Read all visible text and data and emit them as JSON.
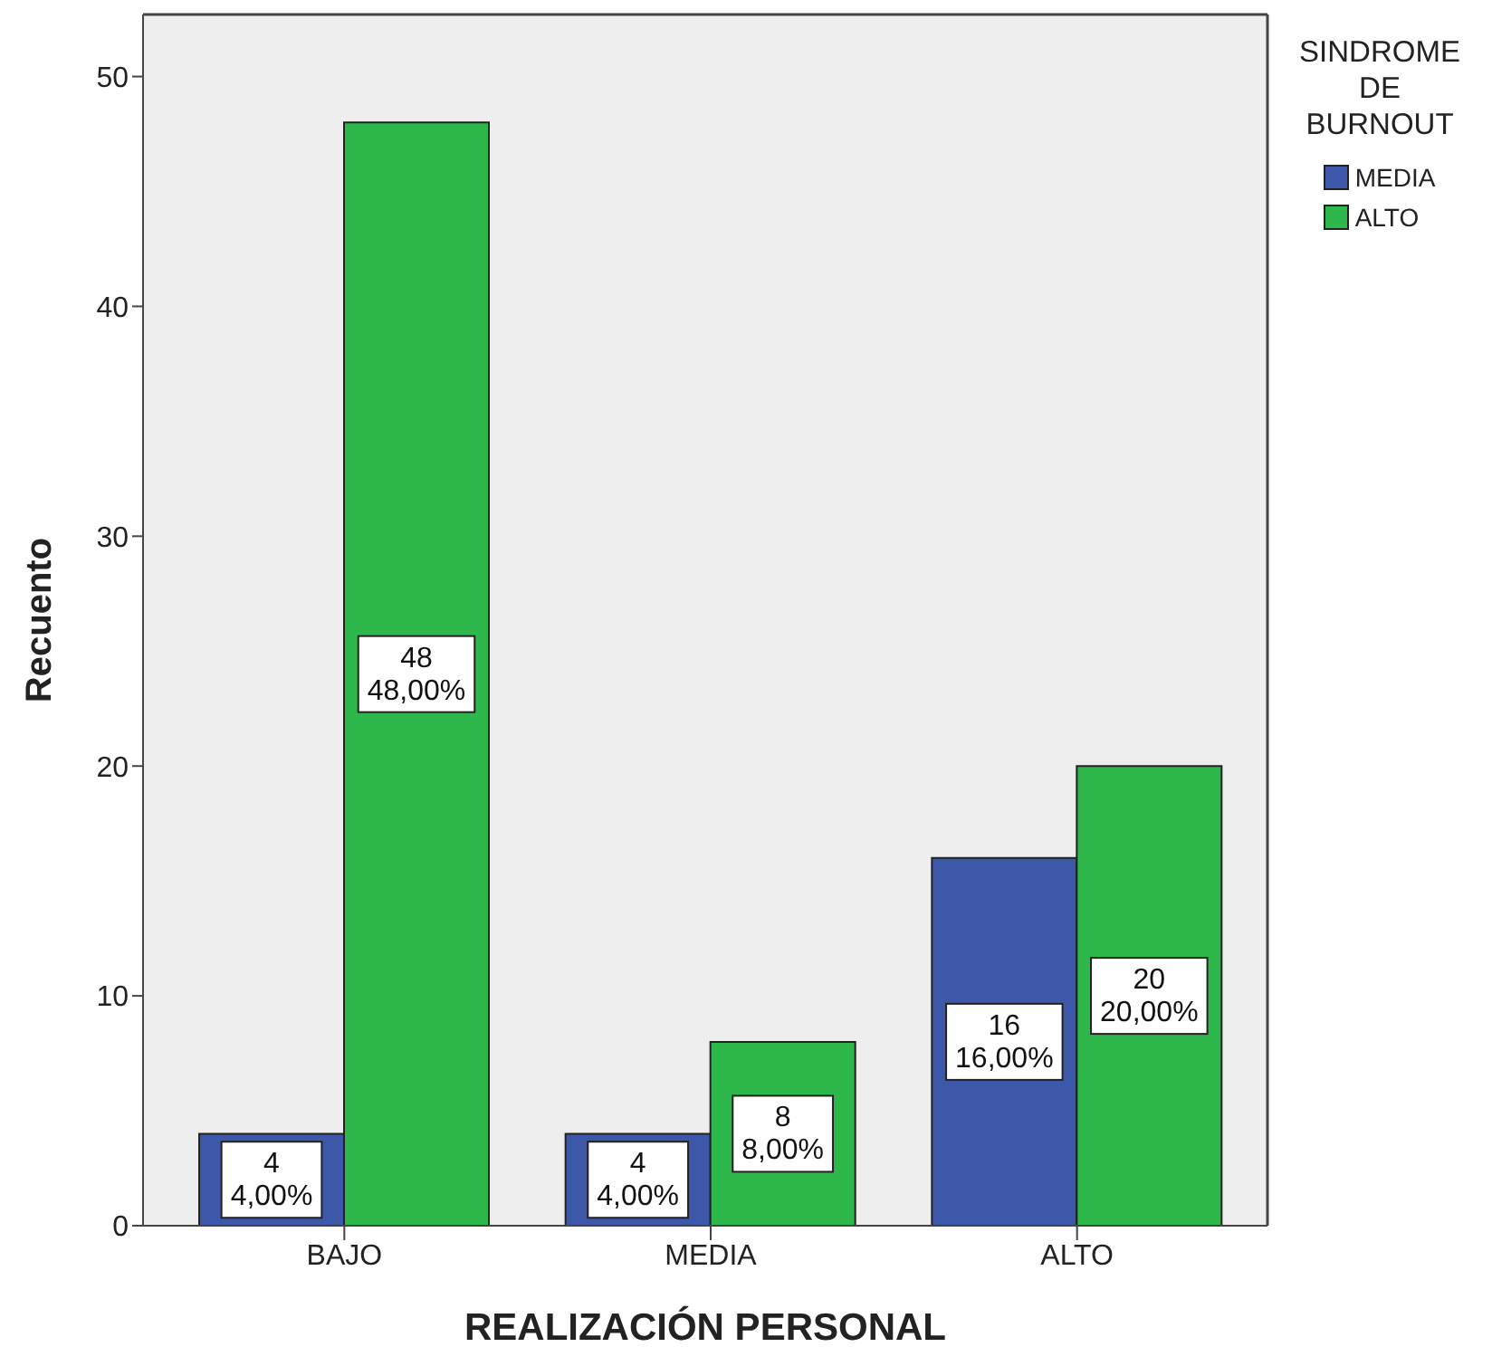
{
  "chart_data": {
    "type": "bar",
    "xlabel": "REALIZACIÓN PERSONAL",
    "ylabel": "Recuento",
    "legend_title": "SINDROME DE BURNOUT",
    "categories": [
      "BAJO",
      "MEDIA",
      "ALTO"
    ],
    "series": [
      {
        "name": "MEDIA",
        "color": "#3d57a9",
        "values": [
          4,
          4,
          16
        ],
        "value_labels": [
          "4\n4,00%",
          "4\n4,00%",
          "16\n16,00%"
        ]
      },
      {
        "name": "ALTO",
        "color": "#2eb74a",
        "values": [
          48,
          8,
          20
        ],
        "value_labels": [
          "48\n48,00%",
          "8\n8,00%",
          "20\n20,00%"
        ]
      }
    ],
    "ylim": [
      0,
      52.7
    ],
    "yticks": [
      0,
      10,
      20,
      30,
      40,
      50
    ],
    "legend": "top right"
  }
}
